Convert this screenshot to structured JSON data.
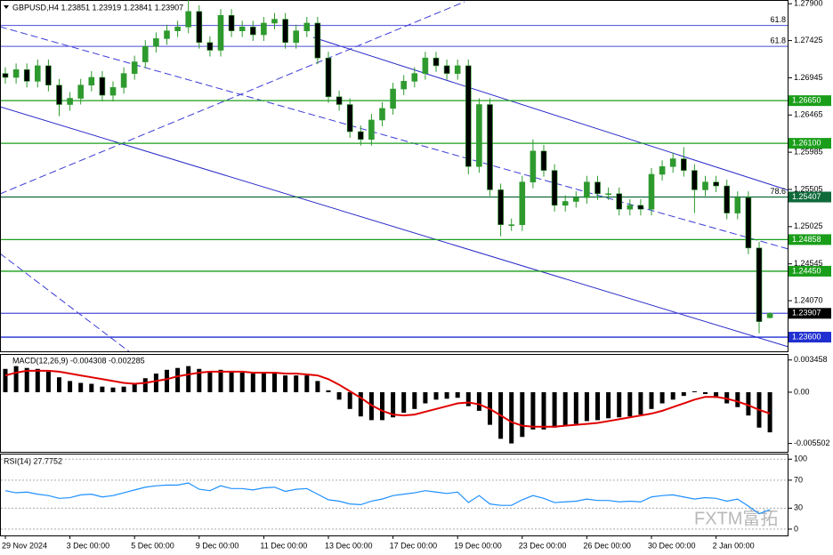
{
  "chart_data": [
    {
      "type": "candlestick",
      "title": "GBPUSD,H4  1.23851 1.23919 1.23841 1.23907",
      "categories": [
        "29 Nov 2024",
        null,
        null,
        null,
        null,
        null,
        "3 Dec 00:00",
        null,
        null,
        null,
        null,
        null,
        "5 Dec 00:00",
        null,
        null,
        null,
        null,
        null,
        "9 Dec 00:00",
        null,
        null,
        null,
        null,
        null,
        "11 Dec 00:00",
        null,
        null,
        null,
        null,
        null,
        "13 Dec 00:00",
        null,
        null,
        null,
        null,
        null,
        "17 Dec 00:00",
        null,
        null,
        null,
        null,
        null,
        "19 Dec 00:00",
        null,
        null,
        null,
        null,
        null,
        "23 Dec 00:00",
        null,
        null,
        null,
        null,
        null,
        "26 Dec 00:00",
        null,
        null,
        null,
        null,
        null,
        "30 Dec 00:00",
        null,
        null,
        null,
        null,
        null,
        "2 Jan 00:00",
        null,
        null,
        null,
        null,
        null
      ],
      "open": [
        1.27,
        1.2695,
        1.2705,
        1.269,
        1.271,
        1.2685,
        1.266,
        1.2668,
        1.2685,
        1.2695,
        1.2672,
        1.2682,
        1.27,
        1.2715,
        1.2735,
        1.2745,
        1.2755,
        1.276,
        1.278,
        1.274,
        1.273,
        1.2775,
        1.2755,
        1.276,
        1.275,
        1.2765,
        1.277,
        1.274,
        1.2755,
        1.2765,
        1.272,
        1.267,
        1.266,
        1.2625,
        1.2615,
        1.264,
        1.2655,
        1.268,
        1.269,
        1.27,
        1.272,
        1.271,
        1.27,
        1.271,
        1.258,
        1.266,
        1.255,
        1.2505,
        1.2505,
        1.256,
        1.26,
        1.2575,
        1.253,
        1.2535,
        1.254,
        1.256,
        1.2545,
        1.2545,
        1.2525,
        1.253,
        1.2525,
        1.257,
        1.258,
        1.259,
        1.2575,
        1.255,
        1.256,
        1.2555,
        1.252,
        1.254,
        1.2475,
        1.23851
      ],
      "high": [
        1.2708,
        1.2713,
        1.2713,
        1.2718,
        1.2718,
        1.2693,
        1.2676,
        1.2693,
        1.2703,
        1.2703,
        1.269,
        1.2708,
        1.2723,
        1.2743,
        1.2753,
        1.2763,
        1.2768,
        1.2795,
        1.2788,
        1.2748,
        1.2783,
        1.2783,
        1.2768,
        1.2768,
        1.2773,
        1.2778,
        1.2778,
        1.2763,
        1.2773,
        1.2773,
        1.2728,
        1.2678,
        1.2668,
        1.2633,
        1.2648,
        1.2663,
        1.2688,
        1.2698,
        1.2708,
        1.2728,
        1.2728,
        1.2718,
        1.2718,
        1.2718,
        1.2668,
        1.2668,
        1.2558,
        1.2513,
        1.2568,
        1.2615,
        1.2608,
        1.2583,
        1.2543,
        1.2548,
        1.2568,
        1.2568,
        1.2553,
        1.2553,
        1.2538,
        1.2538,
        1.2578,
        1.2588,
        1.2598,
        1.2605,
        1.2583,
        1.2568,
        1.2568,
        1.2563,
        1.2548,
        1.2548,
        1.2483,
        1.23919
      ],
      "low": [
        1.2687,
        1.2687,
        1.2682,
        1.2682,
        1.2677,
        1.2645,
        1.2652,
        1.266,
        1.2677,
        1.2664,
        1.2664,
        1.2674,
        1.2692,
        1.2707,
        1.2727,
        1.2737,
        1.2747,
        1.2752,
        1.2732,
        1.2722,
        1.2722,
        1.2747,
        1.2747,
        1.2742,
        1.2742,
        1.2757,
        1.2732,
        1.2732,
        1.2747,
        1.2712,
        1.2662,
        1.2652,
        1.2617,
        1.2607,
        1.2607,
        1.2632,
        1.2647,
        1.2672,
        1.2682,
        1.2692,
        1.2702,
        1.2692,
        1.2692,
        1.257,
        1.2572,
        1.2542,
        1.249,
        1.2497,
        1.2497,
        1.2552,
        1.2567,
        1.2522,
        1.2522,
        1.2527,
        1.2532,
        1.2537,
        1.2537,
        1.2517,
        1.2517,
        1.2517,
        1.2517,
        1.2562,
        1.2572,
        1.2567,
        1.252,
        1.2542,
        1.2547,
        1.2512,
        1.2512,
        1.2467,
        1.2365,
        1.23841
      ],
      "close": [
        1.2695,
        1.2705,
        1.269,
        1.271,
        1.2685,
        1.266,
        1.2668,
        1.2685,
        1.2695,
        1.2672,
        1.2682,
        1.27,
        1.2715,
        1.2735,
        1.2745,
        1.2755,
        1.276,
        1.278,
        1.274,
        1.273,
        1.2775,
        1.2755,
        1.276,
        1.275,
        1.2765,
        1.277,
        1.274,
        1.2755,
        1.2765,
        1.272,
        1.267,
        1.266,
        1.2625,
        1.2615,
        1.264,
        1.2655,
        1.268,
        1.269,
        1.27,
        1.272,
        1.271,
        1.27,
        1.271,
        1.258,
        1.266,
        1.255,
        1.2505,
        1.2505,
        1.256,
        1.26,
        1.2575,
        1.253,
        1.2535,
        1.254,
        1.256,
        1.2545,
        1.2545,
        1.2525,
        1.253,
        1.2525,
        1.257,
        1.258,
        1.259,
        1.2575,
        1.255,
        1.256,
        1.2555,
        1.252,
        1.254,
        1.2475,
        1.238,
        1.23907
      ],
      "up_color": "#2e9a2e",
      "down_color": "#000000",
      "ylim": [
        1.23417,
        1.27948
      ],
      "yticks": [
        {
          "value": 1.279,
          "label": "1.27900"
        },
        1.27425,
        1.26945,
        1.26465,
        1.25985,
        1.25505,
        1.25025,
        1.24545,
        {
          "value": 1.2407,
          "label": "1.24070"
        }
      ],
      "levels": [
        {
          "value": 1.2665,
          "label": "1.26650",
          "color": "#1a9e1a"
        },
        {
          "value": 1.261,
          "label": "1.26100",
          "color": "#1a9e1a"
        },
        {
          "value": 1.25407,
          "label": "1.25407",
          "color": "#0f6a3a"
        },
        {
          "value": 1.24858,
          "label": "1.24858",
          "color": "#1a9e1a"
        },
        {
          "value": 1.2445,
          "label": "1.24450",
          "color": "#1a9e1a"
        },
        {
          "value": 1.23907,
          "label": "1.23907",
          "color": "#000000",
          "line_color": "#4b4bd8"
        },
        {
          "value": 1.236,
          "label": "1.23600",
          "color": "#1f2fd0"
        }
      ],
      "fib_levels": [
        {
          "value": 1.2762,
          "label": "61.8",
          "color": "#4b4bd8"
        },
        {
          "value": 1.2735,
          "label": "61.8",
          "color": "#4b4bd8"
        },
        {
          "value": 1.25407,
          "label": "78.6",
          "color": "#0f6a3a"
        }
      ],
      "watermark": "FXTM富拓"
    },
    {
      "type": "bar",
      "title": "MACD(12,26,9) -0.004308 -0.002285",
      "values": [
        0.0025,
        0.0028,
        0.0026,
        0.0025,
        0.0022,
        0.0016,
        0.0012,
        0.001,
        0.0009,
        0.0006,
        0.0005,
        0.0006,
        0.001,
        0.0015,
        0.002,
        0.0024,
        0.0026,
        0.0028,
        0.0025,
        0.0022,
        0.0024,
        0.0022,
        0.0021,
        0.002,
        0.002,
        0.002,
        0.0018,
        0.0018,
        0.0018,
        0.0012,
        0.0002,
        -0.0008,
        -0.0018,
        -0.0026,
        -0.003,
        -0.003,
        -0.0027,
        -0.0022,
        -0.0018,
        -0.0012,
        -0.0008,
        -0.0007,
        -0.0006,
        -0.0015,
        -0.002,
        -0.0035,
        -0.005,
        -0.0055,
        -0.0048,
        -0.004,
        -0.004,
        -0.0038,
        -0.0036,
        -0.0034,
        -0.0031,
        -0.003,
        -0.0028,
        -0.0027,
        -0.0026,
        -0.0024,
        -0.0018,
        -0.0012,
        -0.0008,
        -0.0004,
        0.0001,
        -0.0002,
        -0.0006,
        -0.0012,
        -0.0016,
        -0.0025,
        -0.0038,
        -0.004308
      ],
      "color": "#000000",
      "signal": {
        "values": [
          0.0018,
          0.0021,
          0.0023,
          0.0023,
          0.0023,
          0.0022,
          0.002,
          0.0018,
          0.0016,
          0.0014,
          0.0012,
          0.001,
          0.0009,
          0.001,
          0.0012,
          0.0014,
          0.0017,
          0.0019,
          0.0021,
          0.0022,
          0.0022,
          0.0022,
          0.0022,
          0.0021,
          0.0021,
          0.0021,
          0.002,
          0.002,
          0.0019,
          0.0018,
          0.0014,
          0.0008,
          0.0001,
          -0.0006,
          -0.0014,
          -0.002,
          -0.0024,
          -0.0025,
          -0.0024,
          -0.0021,
          -0.0018,
          -0.0015,
          -0.0012,
          -0.0011,
          -0.0013,
          -0.0018,
          -0.0025,
          -0.0032,
          -0.0036,
          -0.0037,
          -0.0037,
          -0.0037,
          -0.0036,
          -0.0035,
          -0.0034,
          -0.0033,
          -0.0031,
          -0.0029,
          -0.0027,
          -0.0025,
          -0.0023,
          -0.002,
          -0.0016,
          -0.0012,
          -0.0008,
          -0.0005,
          -0.0005,
          -0.0007,
          -0.001,
          -0.0014,
          -0.0019,
          -0.002285
        ],
        "color": "#e00000"
      },
      "ylim": [
        -0.0064,
        0.0041
      ],
      "yticks": [
        0.003458,
        {
          "value": 0,
          "label": "0.00"
        },
        -0.005502
      ]
    },
    {
      "type": "line",
      "title": "RSI(14) 27.7752",
      "values": [
        55,
        52,
        53,
        50,
        48,
        44,
        45,
        49,
        50,
        46,
        48,
        52,
        56,
        60,
        62,
        63,
        63,
        66,
        57,
        55,
        62,
        58,
        58,
        56,
        59,
        60,
        54,
        57,
        58,
        50,
        42,
        40,
        36,
        35,
        40,
        43,
        48,
        50,
        52,
        55,
        53,
        51,
        53,
        38,
        48,
        36,
        34,
        34,
        42,
        48,
        44,
        38,
        39,
        40,
        43,
        41,
        41,
        39,
        40,
        39,
        46,
        48,
        49,
        46,
        43,
        45,
        44,
        40,
        43,
        33,
        22,
        27.7752
      ],
      "color": "#1e90ff",
      "ylim": [
        -9,
        108
      ],
      "yticks": [
        0,
        30,
        70,
        100
      ]
    }
  ]
}
